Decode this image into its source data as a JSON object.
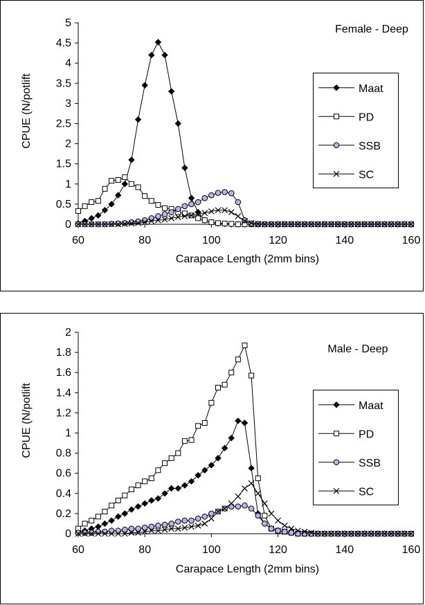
{
  "chart_data": [
    {
      "type": "line",
      "title": "Female - Deep",
      "xlabel": "Carapace Length (2mm bins)",
      "ylabel": "CPUE (N/potlift",
      "xlim": [
        60,
        160
      ],
      "ylim": [
        0,
        5
      ],
      "xticks": [
        60,
        80,
        100,
        120,
        140,
        160
      ],
      "yticks": [
        0,
        0.5,
        1,
        1.5,
        2,
        2.5,
        3,
        3.5,
        4,
        4.5,
        5
      ],
      "ytick_labels": [
        "0",
        "0.5",
        "1",
        "1.5",
        "2",
        "2.5",
        "3",
        "3.5",
        "4",
        "4.5",
        "5"
      ],
      "x": [
        60,
        62,
        64,
        66,
        68,
        70,
        72,
        74,
        76,
        78,
        80,
        82,
        84,
        86,
        88,
        90,
        92,
        94,
        96,
        98,
        100,
        102,
        104,
        106,
        108,
        110,
        112,
        114,
        116,
        118,
        120,
        122,
        124,
        126,
        128,
        130,
        132,
        134,
        136,
        138,
        140,
        142,
        144,
        146,
        148,
        150,
        152,
        154,
        156,
        158,
        160
      ],
      "legend": {
        "placement": "right"
      },
      "series": [
        {
          "name": "Maat",
          "marker": "diamond",
          "values": [
            0.02,
            0.08,
            0.15,
            0.22,
            0.35,
            0.5,
            0.72,
            1.0,
            1.6,
            2.6,
            3.45,
            4.2,
            4.52,
            4.2,
            3.3,
            2.5,
            1.4,
            0.65,
            0.3,
            0.1,
            0.05,
            0.02,
            0.01,
            0,
            0,
            0,
            0,
            0,
            0,
            0,
            0,
            0,
            0,
            0,
            0,
            0,
            0,
            0,
            0,
            0,
            0,
            0,
            0,
            0,
            0,
            0,
            0,
            0,
            0,
            0,
            0
          ]
        },
        {
          "name": "PD",
          "marker": "square",
          "values": [
            0.33,
            0.45,
            0.55,
            0.58,
            0.88,
            1.08,
            1.1,
            1.17,
            1.0,
            0.92,
            0.7,
            0.58,
            0.48,
            0.4,
            0.38,
            0.3,
            0.27,
            0.22,
            0.15,
            0.1,
            0.05,
            0.03,
            0.02,
            0.01,
            0,
            0,
            0,
            0,
            0,
            0,
            0,
            0,
            0,
            0,
            0,
            0,
            0,
            0,
            0,
            0,
            0,
            0,
            0,
            0,
            0,
            0,
            0,
            0,
            0,
            0,
            0
          ]
        },
        {
          "name": "SSB",
          "marker": "circle",
          "values": [
            0,
            0,
            0,
            0,
            0,
            0.01,
            0.02,
            0.03,
            0.05,
            0.07,
            0.1,
            0.15,
            0.2,
            0.25,
            0.3,
            0.38,
            0.45,
            0.5,
            0.55,
            0.65,
            0.72,
            0.78,
            0.8,
            0.77,
            0.55,
            0.1,
            0.02,
            0.01,
            0,
            0,
            0,
            0,
            0,
            0,
            0,
            0,
            0,
            0,
            0,
            0,
            0,
            0,
            0,
            0,
            0,
            0,
            0,
            0,
            0,
            0,
            0
          ]
        },
        {
          "name": "SC",
          "marker": "x",
          "values": [
            0,
            0,
            0,
            0,
            0,
            0,
            0,
            0.01,
            0.02,
            0.03,
            0.05,
            0.08,
            0.1,
            0.12,
            0.15,
            0.18,
            0.2,
            0.22,
            0.25,
            0.28,
            0.32,
            0.35,
            0.35,
            0.3,
            0.2,
            0.08,
            0.03,
            0.01,
            0,
            0,
            0,
            0,
            0,
            0,
            0,
            0,
            0,
            0,
            0,
            0,
            0,
            0,
            0,
            0,
            0,
            0,
            0,
            0,
            0,
            0,
            0
          ]
        }
      ]
    },
    {
      "type": "line",
      "title": "Male - Deep",
      "xlabel": "Carapace Length (2mm bins)",
      "ylabel": "CPUE (N/potlift",
      "xlim": [
        60,
        160
      ],
      "ylim": [
        0,
        2
      ],
      "xticks": [
        60,
        80,
        100,
        120,
        140,
        160
      ],
      "yticks": [
        0,
        0.2,
        0.4,
        0.6,
        0.8,
        1,
        1.2,
        1.4,
        1.6,
        1.8,
        2
      ],
      "ytick_labels": [
        "0",
        "0.2",
        "0.4",
        "0.6",
        "0.8",
        "1",
        "1.2",
        "1.4",
        "1.6",
        "1.8",
        "2"
      ],
      "x": [
        60,
        62,
        64,
        66,
        68,
        70,
        72,
        74,
        76,
        78,
        80,
        82,
        84,
        86,
        88,
        90,
        92,
        94,
        96,
        98,
        100,
        102,
        104,
        106,
        108,
        110,
        112,
        114,
        116,
        118,
        120,
        122,
        124,
        126,
        128,
        130,
        132,
        134,
        136,
        138,
        140,
        142,
        144,
        146,
        148,
        150,
        152,
        154,
        156,
        158,
        160
      ],
      "legend": {
        "placement": "right"
      },
      "series": [
        {
          "name": "Maat",
          "marker": "diamond",
          "values": [
            0.02,
            0.03,
            0.05,
            0.07,
            0.1,
            0.13,
            0.17,
            0.2,
            0.24,
            0.27,
            0.3,
            0.33,
            0.35,
            0.4,
            0.45,
            0.45,
            0.48,
            0.52,
            0.58,
            0.63,
            0.68,
            0.75,
            0.85,
            0.95,
            1.12,
            1.1,
            0.65,
            0.2,
            0.1,
            0.05,
            0.03,
            0.02,
            0.01,
            0,
            0,
            0,
            0,
            0,
            0,
            0,
            0,
            0,
            0,
            0,
            0,
            0,
            0,
            0,
            0,
            0,
            0
          ]
        },
        {
          "name": "PD",
          "marker": "square",
          "values": [
            0.05,
            0.1,
            0.13,
            0.17,
            0.22,
            0.28,
            0.33,
            0.38,
            0.44,
            0.48,
            0.52,
            0.55,
            0.63,
            0.7,
            0.75,
            0.8,
            0.92,
            0.93,
            1.07,
            1.1,
            1.3,
            1.45,
            1.48,
            1.6,
            1.73,
            1.87,
            1.57,
            0.55,
            0.18,
            0.05,
            0.03,
            0.02,
            0.01,
            0,
            0,
            0,
            0,
            0,
            0,
            0,
            0,
            0,
            0,
            0,
            0,
            0,
            0,
            0,
            0,
            0,
            0
          ]
        },
        {
          "name": "SSB",
          "marker": "circle",
          "values": [
            0.01,
            0.01,
            0.01,
            0.02,
            0.02,
            0.03,
            0.03,
            0.04,
            0.05,
            0.05,
            0.06,
            0.07,
            0.08,
            0.09,
            0.1,
            0.12,
            0.13,
            0.13,
            0.15,
            0.17,
            0.2,
            0.22,
            0.25,
            0.27,
            0.27,
            0.28,
            0.25,
            0.18,
            0.1,
            0.05,
            0.03,
            0.02,
            0.01,
            0,
            0,
            0,
            0,
            0,
            0,
            0,
            0,
            0,
            0,
            0,
            0,
            0,
            0,
            0,
            0,
            0,
            0
          ]
        },
        {
          "name": "SC",
          "marker": "x",
          "values": [
            0,
            0,
            0,
            0,
            0,
            0,
            0,
            0,
            0.01,
            0.01,
            0.02,
            0.03,
            0.03,
            0.04,
            0.05,
            0.05,
            0.06,
            0.07,
            0.08,
            0.1,
            0.15,
            0.22,
            0.25,
            0.3,
            0.37,
            0.45,
            0.5,
            0.4,
            0.3,
            0.2,
            0.13,
            0.08,
            0.05,
            0.03,
            0.02,
            0.01,
            0,
            0,
            0,
            0,
            0,
            0,
            0,
            0,
            0,
            0,
            0,
            0,
            0,
            0,
            0
          ]
        }
      ]
    }
  ]
}
